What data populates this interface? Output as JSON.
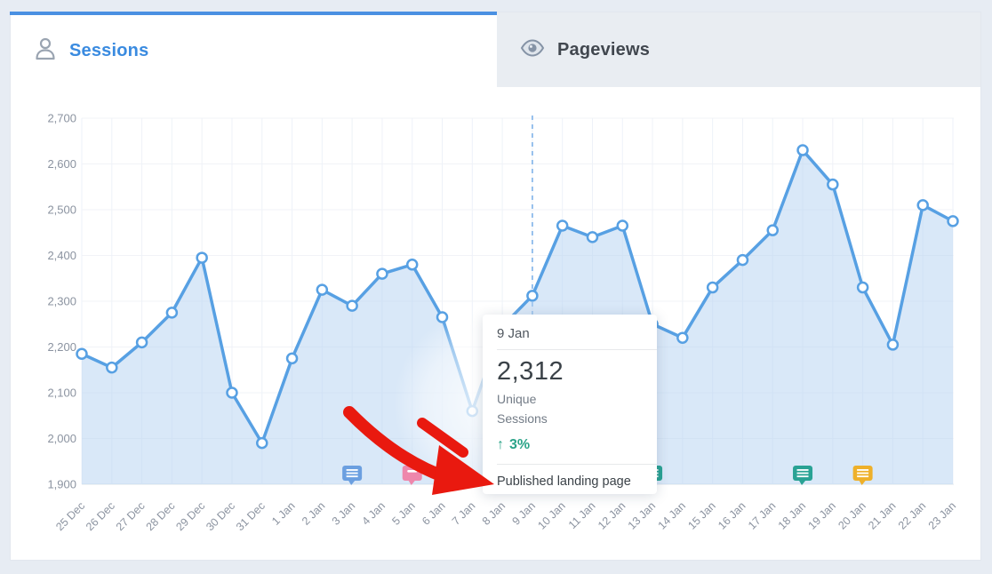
{
  "tabs": {
    "sessions": {
      "label": "Sessions"
    },
    "pageviews": {
      "label": "Pageviews"
    }
  },
  "tooltip": {
    "date": "9 Jan",
    "value": "2,312",
    "metric_line1": "Unique",
    "metric_line2": "Sessions",
    "change_arrow": "↑",
    "change": "3%",
    "note": "Published landing page"
  },
  "colors": {
    "accent": "#4a90e2",
    "tab_active_text": "#3a8be0",
    "line": "#57a0e3",
    "area_fill": "rgba(179,209,241,0.5)",
    "teal": "#2aa388",
    "red_arrow": "#e9190f",
    "axis_text": "#8b93a0"
  },
  "chart_data": {
    "type": "area",
    "title": "Unique Sessions by day",
    "x": [
      "25 Dec",
      "26 Dec",
      "27 Dec",
      "28 Dec",
      "29 Dec",
      "30 Dec",
      "31 Dec",
      "1 Jan",
      "2 Jan",
      "3 Jan",
      "4 Jan",
      "5 Jan",
      "6 Jan",
      "7 Jan",
      "8 Jan",
      "9 Jan",
      "10 Jan",
      "11 Jan",
      "12 Jan",
      "13 Jan",
      "14 Jan",
      "15 Jan",
      "16 Jan",
      "17 Jan",
      "18 Jan",
      "19 Jan",
      "20 Jan",
      "21 Jan",
      "22 Jan",
      "23 Jan"
    ],
    "series": [
      {
        "name": "Unique Sessions",
        "values": [
          2185,
          2155,
          2210,
          2275,
          2395,
          2100,
          1990,
          2175,
          2325,
          2290,
          2360,
          2380,
          2265,
          2060,
          2245,
          2312,
          2465,
          2440,
          2465,
          2250,
          2220,
          2330,
          2390,
          2455,
          2630,
          2555,
          2330,
          2205,
          2510,
          2475
        ]
      }
    ],
    "ylim": [
      1900,
      2700
    ],
    "ystep": 100,
    "grid": true,
    "legend": "none",
    "dashed_guide_x": "9 Jan",
    "annotations": [
      {
        "date": "3 Jan",
        "color": "#6b9fe0",
        "lines": 3
      },
      {
        "date": "5 Jan",
        "color": "#ee87ac",
        "lines": 1
      },
      {
        "date": "13 Jan",
        "color": "#29a294",
        "lines": 3
      },
      {
        "date": "18 Jan",
        "color": "#29a294",
        "lines": 3
      },
      {
        "date": "20 Jan",
        "color": "#eeb02a",
        "lines": 3
      }
    ]
  }
}
